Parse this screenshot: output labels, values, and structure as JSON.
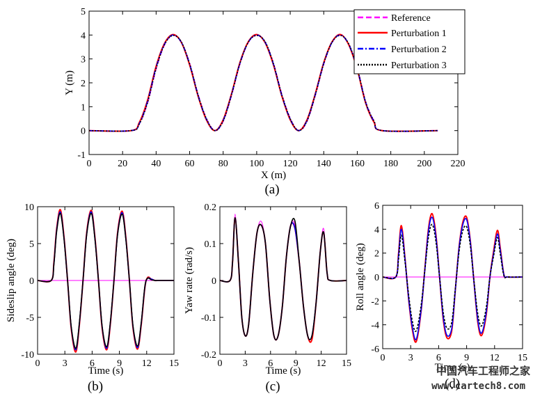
{
  "watermark": {
    "cn": "中国汽车工程师之家",
    "url": "www.cartech8.com"
  },
  "colors": {
    "reference": "#ff00ff",
    "p1": "#ff0000",
    "p2": "#0000ff",
    "p3": "#000000"
  },
  "chart_data": [
    {
      "id": "a",
      "type": "line",
      "caption": "(a)",
      "xlabel": "X (m)",
      "ylabel": "Y (m)",
      "xlim": [
        0,
        220
      ],
      "ylim": [
        -1,
        5
      ],
      "xticks": [
        0,
        20,
        40,
        60,
        80,
        100,
        120,
        140,
        160,
        180,
        200,
        220
      ],
      "yticks": [
        -1,
        0,
        1,
        2,
        3,
        4,
        5
      ],
      "legend": [
        "Reference",
        "Perturbation 1",
        "Perturbation 2",
        "Perturbation 3"
      ],
      "legend_position": "top-right",
      "x": [
        0,
        25,
        30,
        35,
        40,
        45,
        50,
        55,
        60,
        65,
        70,
        75,
        80,
        85,
        90,
        95,
        100,
        105,
        110,
        115,
        120,
        125,
        130,
        135,
        140,
        145,
        150,
        155,
        160,
        165,
        170,
        175,
        208
      ],
      "series": [
        {
          "name": "Reference",
          "values": [
            0,
            0,
            0.3,
            1.2,
            2.6,
            3.6,
            4.0,
            3.7,
            2.8,
            1.5,
            0.5,
            0.0,
            0.4,
            1.5,
            2.8,
            3.7,
            4.0,
            3.7,
            2.8,
            1.5,
            0.5,
            0.0,
            0.4,
            1.5,
            2.8,
            3.7,
            4.0,
            3.6,
            2.6,
            1.2,
            0.4,
            0.0,
            0.0
          ]
        },
        {
          "name": "Perturbation 1",
          "values": [
            0,
            0,
            0.35,
            1.3,
            2.7,
            3.65,
            4.02,
            3.7,
            2.75,
            1.45,
            0.45,
            0.0,
            0.45,
            1.55,
            2.85,
            3.72,
            4.02,
            3.68,
            2.75,
            1.45,
            0.45,
            0.0,
            0.45,
            1.55,
            2.85,
            3.72,
            4.02,
            3.58,
            2.55,
            1.15,
            0.35,
            0.0,
            0.0
          ]
        },
        {
          "name": "Perturbation 2",
          "values": [
            0,
            0,
            0.3,
            1.25,
            2.65,
            3.62,
            4.0,
            3.7,
            2.78,
            1.48,
            0.48,
            0.0,
            0.42,
            1.52,
            2.82,
            3.7,
            4.0,
            3.7,
            2.78,
            1.48,
            0.48,
            0.0,
            0.42,
            1.52,
            2.82,
            3.7,
            4.0,
            3.6,
            2.58,
            1.18,
            0.38,
            0.0,
            0.0
          ]
        },
        {
          "name": "Perturbation 3",
          "values": [
            0,
            0,
            0.28,
            1.2,
            2.6,
            3.6,
            3.98,
            3.72,
            2.8,
            1.5,
            0.5,
            0.0,
            0.4,
            1.5,
            2.8,
            3.7,
            3.98,
            3.72,
            2.8,
            1.5,
            0.5,
            0.0,
            0.4,
            1.5,
            2.8,
            3.7,
            3.98,
            3.62,
            2.6,
            1.2,
            0.4,
            0.0,
            0.0
          ]
        }
      ]
    },
    {
      "id": "b",
      "type": "line",
      "caption": "(b)",
      "xlabel": "Time (s)",
      "ylabel": "Sideslip angle (deg)",
      "xlim": [
        0,
        15
      ],
      "ylim": [
        -10,
        10
      ],
      "xticks": [
        0,
        3,
        6,
        9,
        12,
        15
      ],
      "yticks": [
        -10,
        -5,
        0,
        5,
        10
      ],
      "x": [
        0,
        1.5,
        1.8,
        2.1,
        2.5,
        2.9,
        3.3,
        3.7,
        4.2,
        4.6,
        5.0,
        5.4,
        5.9,
        6.3,
        6.7,
        7.1,
        7.6,
        8.0,
        8.4,
        8.8,
        9.3,
        9.7,
        10.1,
        10.5,
        11.0,
        11.4,
        11.8,
        12.1,
        12.5,
        12.9,
        13.2,
        15
      ],
      "series": [
        {
          "name": "Reference",
          "values": [
            0,
            0,
            0,
            0,
            0,
            0,
            0,
            0,
            0,
            0,
            0,
            0,
            0,
            0,
            0,
            0,
            0,
            0,
            0,
            0,
            0,
            0,
            0,
            0,
            0,
            0,
            0,
            0,
            0,
            0,
            0,
            0
          ]
        },
        {
          "name": "Perturbation 1",
          "values": [
            0,
            0,
            2.5,
            7.0,
            9.6,
            6.0,
            0,
            -6.5,
            -9.7,
            -6.0,
            0,
            6.5,
            9.5,
            6.0,
            0,
            -6.5,
            -9.4,
            -6.0,
            0,
            6.5,
            9.4,
            6.0,
            0,
            -6.5,
            -9.3,
            -6.0,
            -1.0,
            0.4,
            0.2,
            0,
            0,
            0
          ]
        },
        {
          "name": "Perturbation 2",
          "values": [
            0,
            0,
            2.3,
            6.8,
            9.3,
            5.8,
            0,
            -6.3,
            -9.4,
            -5.8,
            0,
            6.3,
            9.3,
            5.8,
            0,
            -6.3,
            -9.2,
            -5.8,
            0,
            6.3,
            9.2,
            5.8,
            0,
            -6.3,
            -9.1,
            -5.8,
            -0.9,
            0.3,
            0.2,
            0,
            0,
            0
          ]
        },
        {
          "name": "Perturbation 3",
          "values": [
            0,
            0,
            2.2,
            6.6,
            9.1,
            5.7,
            0,
            -6.2,
            -9.2,
            -5.7,
            0,
            6.2,
            9.1,
            5.7,
            0,
            -6.2,
            -9.0,
            -5.7,
            0,
            6.2,
            9.0,
            5.7,
            0,
            -6.2,
            -8.9,
            -5.7,
            -0.8,
            0.3,
            0.1,
            0,
            0,
            0
          ]
        }
      ]
    },
    {
      "id": "c",
      "type": "line",
      "caption": "(c)",
      "xlabel": "Time (s)",
      "ylabel": "Yaw rate (rad/s)",
      "xlim": [
        0,
        15
      ],
      "ylim": [
        -0.2,
        0.2
      ],
      "xticks": [
        0,
        3,
        6,
        9,
        12,
        15
      ],
      "yticks": [
        -0.2,
        -0.1,
        0,
        0.1,
        0.2
      ],
      "ytick_labels": [
        "-0.2",
        "-0.1",
        "0",
        "0.1",
        "0.2"
      ],
      "x": [
        0,
        1.2,
        1.5,
        1.8,
        2.2,
        2.6,
        3.0,
        3.4,
        3.9,
        4.4,
        4.9,
        5.4,
        5.9,
        6.4,
        6.9,
        7.4,
        7.9,
        8.4,
        8.9,
        9.4,
        9.9,
        10.4,
        10.9,
        11.4,
        11.9,
        12.3,
        12.7,
        13.1,
        15
      ],
      "series": [
        {
          "name": "Reference",
          "values": [
            0,
            0,
            0.05,
            0.18,
            0.05,
            -0.1,
            -0.15,
            -0.12,
            0.02,
            0.13,
            0.16,
            0.1,
            -0.05,
            -0.15,
            -0.15,
            -0.07,
            0.07,
            0.15,
            0.15,
            0.05,
            -0.07,
            -0.15,
            -0.15,
            -0.06,
            0.08,
            0.14,
            0.02,
            0,
            0
          ]
        },
        {
          "name": "Perturbation 1",
          "values": [
            0,
            0,
            0.05,
            0.17,
            0.05,
            -0.1,
            -0.15,
            -0.12,
            0.02,
            0.13,
            0.15,
            0.1,
            -0.05,
            -0.15,
            -0.15,
            -0.07,
            0.07,
            0.15,
            0.14,
            0.05,
            -0.07,
            -0.15,
            -0.16,
            -0.06,
            0.08,
            0.13,
            0.02,
            0,
            0
          ]
        },
        {
          "name": "Perturbation 2",
          "values": [
            0,
            0,
            0.05,
            0.17,
            0.05,
            -0.1,
            -0.15,
            -0.12,
            0.02,
            0.13,
            0.15,
            0.1,
            -0.05,
            -0.15,
            -0.15,
            -0.07,
            0.07,
            0.15,
            0.14,
            0.05,
            -0.07,
            -0.15,
            -0.15,
            -0.06,
            0.08,
            0.13,
            0.02,
            0,
            0
          ]
        },
        {
          "name": "Perturbation 3",
          "values": [
            0,
            0,
            0.05,
            0.17,
            0.05,
            -0.1,
            -0.15,
            -0.12,
            0.02,
            0.13,
            0.15,
            0.1,
            -0.05,
            -0.15,
            -0.15,
            -0.07,
            0.07,
            0.15,
            0.16,
            0.05,
            -0.07,
            -0.15,
            -0.15,
            -0.06,
            0.08,
            0.13,
            0.02,
            0,
            0
          ]
        }
      ]
    },
    {
      "id": "d",
      "type": "line",
      "caption": "(d)",
      "xlabel": "Time (s)",
      "ylabel": "Roll angle (deg)",
      "xlim": [
        0,
        15
      ],
      "ylim": [
        -6,
        6
      ],
      "xticks": [
        0,
        3,
        6,
        9,
        12,
        15
      ],
      "yticks": [
        -6,
        -4,
        -2,
        0,
        2,
        4,
        6
      ],
      "x": [
        0,
        1.4,
        1.7,
        2.0,
        2.4,
        2.8,
        3.2,
        3.6,
        4.1,
        4.5,
        4.9,
        5.3,
        5.7,
        6.1,
        6.5,
        6.9,
        7.4,
        7.8,
        8.2,
        8.6,
        9.0,
        9.4,
        9.8,
        10.2,
        10.6,
        11.1,
        11.5,
        11.9,
        12.3,
        12.6,
        13.0,
        13.4,
        15
      ],
      "series": [
        {
          "name": "Reference",
          "values": [
            0,
            0,
            0,
            0,
            0,
            0,
            0,
            0,
            0,
            0,
            0,
            0,
            0,
            0,
            0,
            0,
            0,
            0,
            0,
            0,
            0,
            0,
            0,
            0,
            0,
            0,
            0,
            0,
            0,
            0,
            0,
            0,
            0
          ]
        },
        {
          "name": "Perturbation 1",
          "values": [
            0,
            0,
            2.0,
            4.3,
            1.5,
            -2.0,
            -4.5,
            -5.4,
            -3.0,
            0.5,
            4.0,
            5.3,
            3.6,
            0,
            -3.6,
            -5.1,
            -4.5,
            -1.0,
            2.6,
            4.6,
            5.0,
            3.0,
            -0.5,
            -3.8,
            -4.9,
            -3.2,
            0.0,
            2.2,
            3.9,
            2.5,
            0.2,
            0,
            0
          ]
        },
        {
          "name": "Perturbation 2",
          "values": [
            0,
            0,
            1.8,
            4.0,
            1.4,
            -1.9,
            -4.3,
            -5.2,
            -2.9,
            0.4,
            3.8,
            5.0,
            3.4,
            0,
            -3.4,
            -4.9,
            -4.3,
            -1.0,
            2.5,
            4.4,
            4.8,
            2.9,
            -0.5,
            -3.6,
            -4.7,
            -3.0,
            0.0,
            2.0,
            3.6,
            2.3,
            0.2,
            0,
            0
          ]
        },
        {
          "name": "Perturbation 3",
          "values": [
            0,
            0,
            1.5,
            3.5,
            1.2,
            -1.6,
            -3.8,
            -4.5,
            -2.5,
            0.4,
            3.3,
            4.4,
            3.0,
            0,
            -3.0,
            -4.3,
            -3.8,
            -0.9,
            2.2,
            3.9,
            4.2,
            2.6,
            -0.4,
            -3.1,
            -4.1,
            -2.6,
            0.0,
            1.8,
            3.3,
            2.0,
            0.1,
            0,
            0
          ]
        }
      ]
    }
  ]
}
